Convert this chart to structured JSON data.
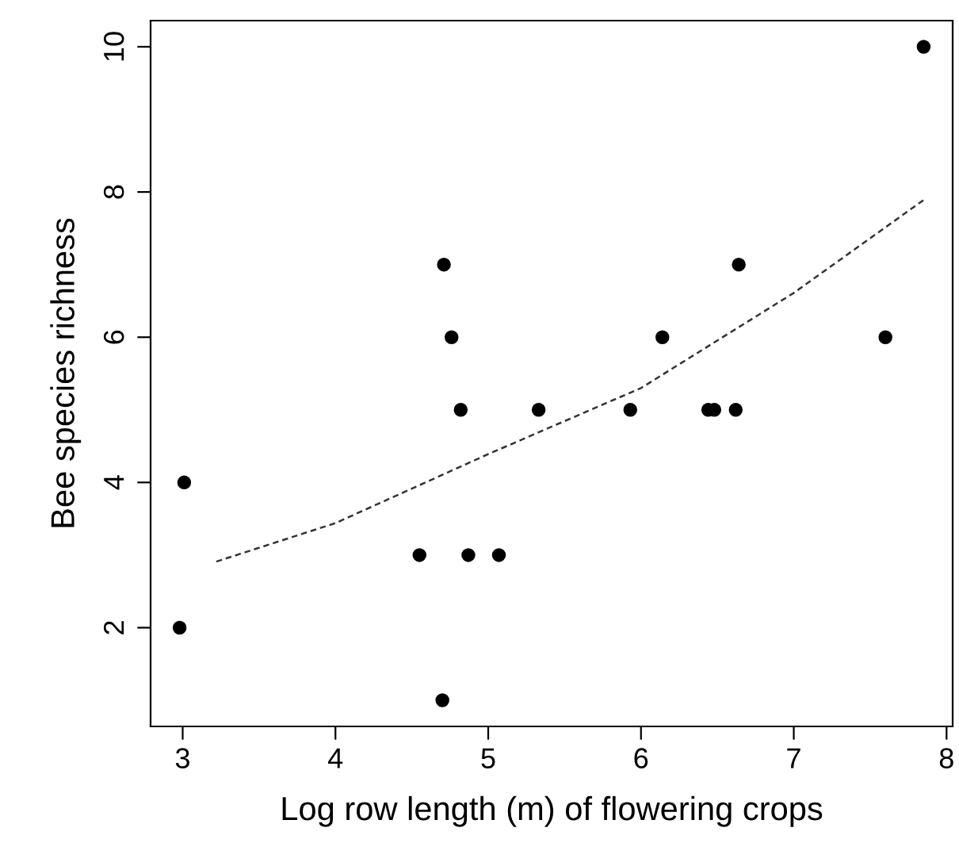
{
  "chart_data": {
    "type": "scatter",
    "xlabel": "Log row length (m) of flowering crops",
    "ylabel": "Bee species richness",
    "xlim": [
      2.79,
      8.04
    ],
    "ylim": [
      0.64,
      10.36
    ],
    "xticks": [
      3,
      4,
      5,
      6,
      7,
      8
    ],
    "yticks": [
      2,
      4,
      6,
      8,
      10
    ],
    "grid": false,
    "legend": false,
    "series": [
      {
        "color": "#000000",
        "marker": "circle",
        "x": [
          3.01,
          2.98,
          4.71,
          4.76,
          4.82,
          5.33,
          4.55,
          4.87,
          5.07,
          4.7,
          5.93,
          6.14,
          6.44,
          6.48,
          6.62,
          6.64,
          7.6,
          7.85
        ],
        "values": [
          4,
          2,
          7,
          6,
          5,
          5,
          3,
          3,
          3,
          1,
          5,
          6,
          5,
          5,
          5,
          7,
          6,
          10
        ]
      },
      {
        "type": "line",
        "color": "#333333",
        "line_style": "dashed",
        "marker": "none",
        "x": [
          3.22,
          4.0,
          5.0,
          6.0,
          7.0,
          7.85
        ],
        "values": [
          2.91,
          3.44,
          4.39,
          5.3,
          6.61,
          7.89
        ]
      }
    ]
  }
}
